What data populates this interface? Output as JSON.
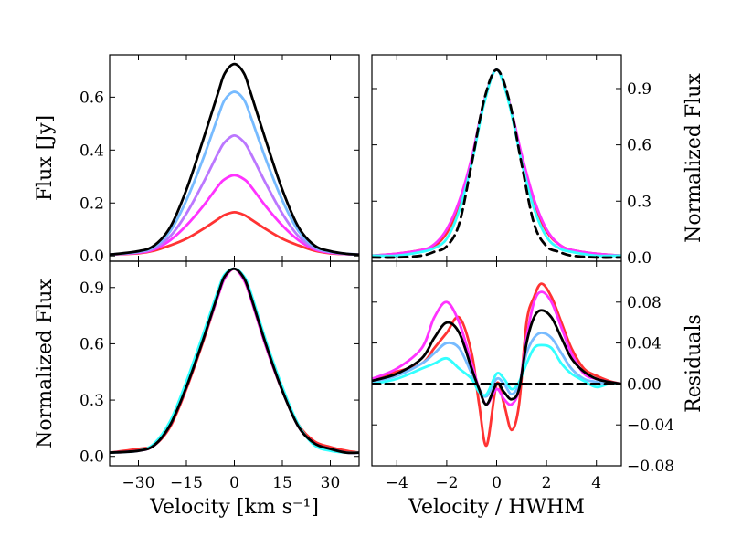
{
  "chart_data": [
    {
      "type": "line",
      "panel": "top-left",
      "ylabel": "Flux [Jy]",
      "xlim": [
        -39,
        39
      ],
      "ylim": [
        -0.02,
        0.76
      ],
      "yticks": [
        "0.0",
        "0.2",
        "0.4",
        "0.6"
      ],
      "grid": false,
      "series": [
        {
          "color": "#ff3333",
          "x": [
            -39,
            -30,
            -25,
            -20,
            -15,
            -10,
            -5,
            -3,
            0,
            3,
            5,
            10,
            15,
            20,
            25,
            30,
            35,
            39
          ],
          "y": [
            0.005,
            0.01,
            0.02,
            0.04,
            0.065,
            0.1,
            0.14,
            0.155,
            0.165,
            0.155,
            0.14,
            0.1,
            0.065,
            0.04,
            0.02,
            0.01,
            0.007,
            0.005
          ]
        },
        {
          "color": "#ff33ff",
          "x": [
            -39,
            -30,
            -25,
            -20,
            -15,
            -10,
            -5,
            -3,
            0,
            3,
            5,
            10,
            15,
            20,
            25,
            30,
            35,
            39
          ],
          "y": [
            0.005,
            0.012,
            0.025,
            0.06,
            0.115,
            0.185,
            0.265,
            0.29,
            0.305,
            0.29,
            0.265,
            0.185,
            0.115,
            0.06,
            0.025,
            0.012,
            0.007,
            0.005
          ]
        },
        {
          "color": "#bb77ff",
          "x": [
            -39,
            -30,
            -25,
            -20,
            -15,
            -10,
            -5,
            -3,
            0,
            3,
            5,
            10,
            15,
            20,
            25,
            30,
            35,
            39
          ],
          "y": [
            0.005,
            0.014,
            0.03,
            0.075,
            0.16,
            0.27,
            0.39,
            0.43,
            0.455,
            0.43,
            0.39,
            0.27,
            0.16,
            0.075,
            0.03,
            0.014,
            0.008,
            0.005
          ]
        },
        {
          "color": "#77bbff",
          "x": [
            -39,
            -30,
            -25,
            -20,
            -15,
            -10,
            -5,
            -3,
            0,
            3,
            5,
            10,
            15,
            20,
            25,
            30,
            35,
            39
          ],
          "y": [
            0.005,
            0.016,
            0.035,
            0.095,
            0.21,
            0.36,
            0.53,
            0.59,
            0.62,
            0.59,
            0.53,
            0.36,
            0.21,
            0.095,
            0.035,
            0.016,
            0.008,
            0.005
          ]
        },
        {
          "color": "#000000",
          "x": [
            -39,
            -30,
            -25,
            -20,
            -15,
            -10,
            -5,
            -3,
            0,
            3,
            5,
            10,
            15,
            20,
            25,
            30,
            35,
            39
          ],
          "y": [
            0.005,
            0.018,
            0.04,
            0.11,
            0.25,
            0.43,
            0.62,
            0.69,
            0.725,
            0.69,
            0.62,
            0.43,
            0.25,
            0.11,
            0.04,
            0.018,
            0.008,
            0.005
          ]
        }
      ]
    },
    {
      "type": "line",
      "panel": "top-right",
      "ylabel": "Normalized Flux",
      "xlim": [
        -5,
        5
      ],
      "ylim": [
        -0.02,
        1.08
      ],
      "yticks": [
        "0.0",
        "0.3",
        "0.6",
        "0.9"
      ],
      "grid": false,
      "series": [
        {
          "color": "#ff3333",
          "x": [
            -5,
            -4,
            -3,
            -2.5,
            -2,
            -1.5,
            -1,
            -0.5,
            0,
            0.5,
            1,
            1.5,
            2,
            2.5,
            3,
            4,
            5
          ],
          "y": [
            0.01,
            0.02,
            0.04,
            0.06,
            0.13,
            0.28,
            0.52,
            0.83,
            1.0,
            0.83,
            0.53,
            0.29,
            0.14,
            0.07,
            0.04,
            0.02,
            0.01
          ]
        },
        {
          "color": "#ff33ff",
          "x": [
            -5,
            -4,
            -3,
            -2.5,
            -2,
            -1.5,
            -1,
            -0.5,
            0,
            0.5,
            1,
            1.5,
            2,
            2.5,
            3,
            4,
            5
          ],
          "y": [
            0.01,
            0.02,
            0.04,
            0.07,
            0.15,
            0.3,
            0.53,
            0.83,
            1.0,
            0.83,
            0.55,
            0.31,
            0.15,
            0.07,
            0.04,
            0.02,
            0.01
          ]
        },
        {
          "color": "#33ffff",
          "x": [
            -5,
            -4,
            -3,
            -2.5,
            -2,
            -1.5,
            -1,
            -0.5,
            0,
            0.5,
            1,
            1.5,
            2,
            2.5,
            3,
            4,
            5
          ],
          "y": [
            0.01,
            0.01,
            0.03,
            0.05,
            0.1,
            0.25,
            0.5,
            0.82,
            1.0,
            0.82,
            0.51,
            0.26,
            0.11,
            0.05,
            0.03,
            0.01,
            0.01
          ]
        },
        {
          "color": "#000000",
          "dashed": true,
          "x": [
            -5,
            -4,
            -3,
            -2.5,
            -2,
            -1.5,
            -1,
            -0.5,
            0,
            0.5,
            1,
            1.5,
            2,
            2.5,
            3,
            4,
            5
          ],
          "y": [
            0.0,
            0.0,
            0.01,
            0.03,
            0.06,
            0.18,
            0.5,
            0.84,
            1.0,
            0.84,
            0.5,
            0.18,
            0.06,
            0.03,
            0.01,
            0.0,
            0.0
          ]
        }
      ]
    },
    {
      "type": "line",
      "panel": "bottom-left",
      "xlabel": "Velocity [km s⁻¹]",
      "ylabel": "Normalized Flux",
      "xlim": [
        -39,
        39
      ],
      "ylim": [
        -0.05,
        1.04
      ],
      "xticks": [
        "−30",
        "−15",
        "0",
        "15",
        "30"
      ],
      "yticks": [
        "0.0",
        "0.3",
        "0.6",
        "0.9"
      ],
      "grid": false,
      "series": [
        {
          "color": "#ff3333",
          "x": [
            -39,
            -30,
            -25,
            -20,
            -15,
            -10,
            -5,
            -3,
            0,
            3,
            5,
            10,
            15,
            20,
            25,
            30,
            35,
            39
          ],
          "y": [
            0.02,
            0.04,
            0.06,
            0.16,
            0.36,
            0.6,
            0.86,
            0.95,
            1.0,
            0.94,
            0.85,
            0.58,
            0.35,
            0.17,
            0.08,
            0.05,
            0.03,
            0.02
          ]
        },
        {
          "color": "#ff33ff",
          "x": [
            -39,
            -30,
            -25,
            -20,
            -15,
            -10,
            -5,
            -3,
            0,
            3,
            5,
            10,
            15,
            20,
            25,
            30,
            35,
            39
          ],
          "y": [
            0.02,
            0.03,
            0.06,
            0.17,
            0.37,
            0.61,
            0.86,
            0.95,
            1.0,
            0.94,
            0.85,
            0.58,
            0.35,
            0.16,
            0.07,
            0.04,
            0.02,
            0.02
          ]
        },
        {
          "color": "#33ffff",
          "x": [
            -39,
            -30,
            -25,
            -20,
            -15,
            -10,
            -5,
            -3,
            0,
            3,
            5,
            10,
            15,
            20,
            25,
            30,
            35,
            39
          ],
          "y": [
            0.02,
            0.03,
            0.07,
            0.19,
            0.4,
            0.64,
            0.89,
            0.97,
            1.0,
            0.96,
            0.88,
            0.61,
            0.37,
            0.17,
            0.06,
            0.03,
            0.02,
            0.02
          ]
        },
        {
          "color": "#000000",
          "x": [
            -39,
            -30,
            -25,
            -20,
            -15,
            -10,
            -5,
            -3,
            0,
            3,
            5,
            10,
            15,
            20,
            25,
            30,
            35,
            39
          ],
          "y": [
            0.02,
            0.03,
            0.06,
            0.17,
            0.37,
            0.61,
            0.87,
            0.96,
            1.0,
            0.95,
            0.86,
            0.59,
            0.35,
            0.16,
            0.07,
            0.04,
            0.02,
            0.02
          ]
        }
      ]
    },
    {
      "type": "line",
      "panel": "bottom-right",
      "xlabel": "Velocity / HWHM",
      "ylabel": "Residuals",
      "xlim": [
        -5,
        5
      ],
      "ylim": [
        -0.08,
        0.12
      ],
      "xticks": [
        "−4",
        "−2",
        "0",
        "2",
        "4"
      ],
      "yticks": [
        "−0.08",
        "−0.04",
        "0.00",
        "0.04",
        "0.08"
      ],
      "grid": false,
      "series": [
        {
          "color": "#ff3333",
          "x": [
            -5,
            -4,
            -3,
            -2.5,
            -2,
            -1.5,
            -1,
            -0.7,
            -0.4,
            0,
            0.3,
            0.6,
            0.9,
            1.2,
            1.5,
            1.8,
            2.2,
            2.6,
            3,
            3.5,
            4,
            4.5,
            5
          ],
          "y": [
            0.005,
            0.012,
            0.02,
            0.035,
            0.05,
            0.065,
            0.03,
            -0.02,
            -0.06,
            0.0,
            -0.02,
            -0.045,
            -0.02,
            0.06,
            0.085,
            0.098,
            0.085,
            0.06,
            0.035,
            0.015,
            0.008,
            0.003,
            0.0
          ]
        },
        {
          "color": "#ff33ff",
          "x": [
            -5,
            -4,
            -3,
            -2.5,
            -2,
            -1.5,
            -1,
            -0.7,
            -0.4,
            0,
            0.3,
            0.6,
            0.9,
            1.2,
            1.5,
            1.8,
            2.2,
            2.6,
            3,
            3.5,
            4,
            4.5,
            5
          ],
          "y": [
            0.005,
            0.015,
            0.035,
            0.065,
            0.08,
            0.06,
            0.02,
            -0.005,
            -0.02,
            -0.005,
            -0.015,
            -0.02,
            -0.005,
            0.045,
            0.08,
            0.09,
            0.08,
            0.055,
            0.03,
            0.01,
            0.005,
            0.002,
            0.0
          ]
        },
        {
          "color": "#77bbff",
          "x": [
            -5,
            -4,
            -3,
            -2.5,
            -2,
            -1.5,
            -1,
            -0.7,
            -0.4,
            0,
            0.3,
            0.6,
            0.9,
            1.2,
            1.5,
            1.8,
            2.2,
            2.6,
            3,
            3.5,
            4,
            4.5,
            5
          ],
          "y": [
            0.002,
            0.008,
            0.02,
            0.03,
            0.04,
            0.035,
            0.01,
            -0.005,
            -0.012,
            0.005,
            0.0,
            -0.01,
            0.0,
            0.03,
            0.045,
            0.05,
            0.045,
            0.03,
            0.015,
            0.005,
            0.002,
            0.0,
            0.0
          ]
        },
        {
          "color": "#33ffff",
          "x": [
            -5,
            -4,
            -3,
            -2.5,
            -2,
            -1.5,
            -1,
            -0.7,
            -0.4,
            0,
            0.3,
            0.6,
            0.9,
            1.2,
            1.5,
            1.8,
            2.2,
            2.6,
            3,
            3.5,
            4,
            4.5,
            5
          ],
          "y": [
            0.0,
            0.005,
            0.015,
            0.02,
            0.025,
            0.015,
            0.005,
            -0.008,
            -0.01,
            0.01,
            0.005,
            -0.005,
            0.002,
            0.02,
            0.035,
            0.038,
            0.035,
            0.02,
            0.01,
            0.003,
            -0.003,
            0.0,
            0.0
          ]
        },
        {
          "color": "#000000",
          "x": [
            -5,
            -4,
            -3,
            -2.5,
            -2,
            -1.5,
            -1,
            -0.7,
            -0.4,
            0,
            0.3,
            0.6,
            0.9,
            1.2,
            1.5,
            1.8,
            2.2,
            2.6,
            3,
            3.5,
            4,
            4.5,
            5
          ],
          "y": [
            0.003,
            0.01,
            0.025,
            0.045,
            0.06,
            0.05,
            0.015,
            -0.005,
            -0.02,
            0.0,
            -0.008,
            -0.015,
            -0.005,
            0.04,
            0.065,
            0.072,
            0.065,
            0.045,
            0.025,
            0.012,
            0.005,
            0.002,
            0.0
          ]
        },
        {
          "color": "#000000",
          "dashed": true,
          "x": [
            -5,
            5
          ],
          "y": [
            0.0,
            0.0
          ]
        }
      ]
    }
  ]
}
